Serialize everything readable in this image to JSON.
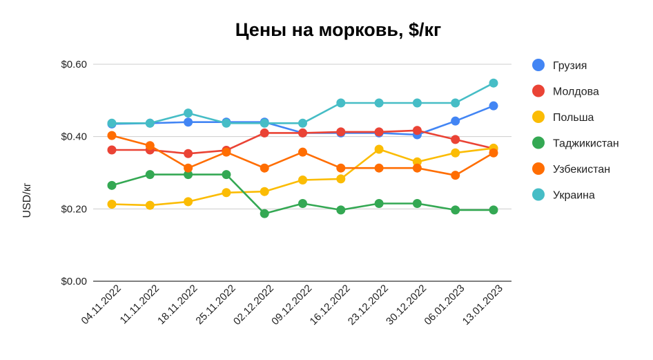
{
  "chart_data": {
    "type": "line",
    "title": "Цены на морковь, $/кг",
    "xlabel": "",
    "ylabel": "USD/кг",
    "ylim": [
      0,
      0.6
    ],
    "y_ticks": [
      "$0.00",
      "$0.20",
      "$0.40",
      "$0.60"
    ],
    "y_tick_values": [
      0,
      0.2,
      0.4,
      0.6
    ],
    "grid": true,
    "legend_position": "right",
    "categories": [
      "04.11.2022",
      "11.11.2022",
      "18.11.2022",
      "25.11.2022",
      "02.12.2022",
      "09.12.2022",
      "16.12.2022",
      "23.12.2022",
      "30.12.2022",
      "06.01.2023",
      "13.01.2023"
    ],
    "series": [
      {
        "name": "Грузия",
        "color": "#4285f4",
        "values": [
          0.435,
          0.437,
          0.44,
          0.44,
          0.44,
          0.41,
          0.41,
          0.41,
          0.405,
          0.443,
          0.485
        ]
      },
      {
        "name": "Молдова",
        "color": "#ea4335",
        "values": [
          0.363,
          0.363,
          0.353,
          0.362,
          0.41,
          0.41,
          0.413,
          0.413,
          0.417,
          0.392,
          0.367
        ]
      },
      {
        "name": "Польша",
        "color": "#fbbc04",
        "values": [
          0.213,
          0.21,
          0.22,
          0.245,
          0.248,
          0.28,
          0.283,
          0.365,
          0.33,
          0.355,
          0.368
        ]
      },
      {
        "name": "Таджикистан",
        "color": "#34a853",
        "values": [
          0.265,
          0.295,
          0.295,
          0.295,
          0.187,
          0.215,
          0.197,
          0.215,
          0.215,
          0.197,
          0.197
        ]
      },
      {
        "name": "Узбекистан",
        "color": "#ff6d01",
        "values": [
          0.403,
          0.375,
          0.313,
          0.357,
          0.313,
          0.357,
          0.313,
          0.313,
          0.313,
          0.293,
          0.355
        ]
      },
      {
        "name": "Украина",
        "color": "#46bdc6",
        "values": [
          0.437,
          0.437,
          0.465,
          0.437,
          0.437,
          0.437,
          0.493,
          0.493,
          0.493,
          0.493,
          0.548
        ]
      }
    ]
  }
}
